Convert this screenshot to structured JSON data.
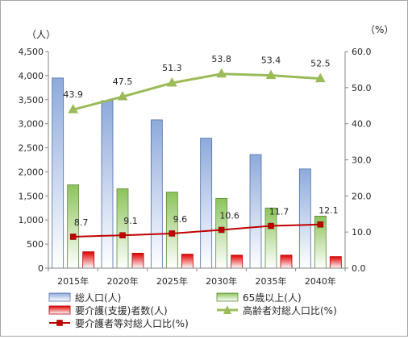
{
  "chart_data": {
    "type": "bar",
    "categories": [
      "2015年",
      "2020年",
      "2025年",
      "2030年",
      "2035年",
      "2040年"
    ],
    "left_unit": "（人）",
    "right_unit": "（%）",
    "left_ticks": [
      "0",
      "500",
      "1,000",
      "1,500",
      "2,000",
      "2,500",
      "3,000",
      "3,500",
      "4,000",
      "4,500"
    ],
    "right_ticks": [
      "0.0",
      "10.0",
      "20.0",
      "30.0",
      "40.0",
      "50.0",
      "60.0"
    ],
    "ylim_left": [
      0,
      4500
    ],
    "ylim_right": [
      0,
      60
    ],
    "series": [
      {
        "name": "総人口(人)",
        "type": "bar",
        "axis": "left",
        "color": "#4472c4",
        "values": [
          3950,
          3480,
          3080,
          2700,
          2360,
          2060
        ]
      },
      {
        "name": "65歳以上(人)",
        "type": "bar",
        "axis": "left",
        "color": "#70ad47",
        "values": [
          1730,
          1650,
          1580,
          1450,
          1250,
          1080
        ]
      },
      {
        "name": "要介護(支援)者数(人)",
        "type": "bar",
        "axis": "left",
        "color": "#e00000",
        "values": [
          340,
          310,
          290,
          270,
          270,
          240
        ]
      },
      {
        "name": "高齢者対総人口比(%)",
        "type": "line",
        "axis": "right",
        "color": "#9bbb59",
        "marker": "triangle",
        "values": [
          43.9,
          47.5,
          51.3,
          53.8,
          53.4,
          52.5
        ],
        "labels": [
          "43.9",
          "47.5",
          "51.3",
          "53.8",
          "53.4",
          "52.5"
        ]
      },
      {
        "name": "要介護者等対総人口比(%)",
        "type": "line",
        "axis": "right",
        "color": "#c00000",
        "marker": "square",
        "values": [
          8.7,
          9.1,
          9.6,
          10.6,
          11.7,
          12.1
        ],
        "labels": [
          "8.7",
          "9.1",
          "9.6",
          "10.6",
          "11.7",
          "12.1"
        ]
      }
    ],
    "legend_position": "bottom",
    "grid": false
  }
}
